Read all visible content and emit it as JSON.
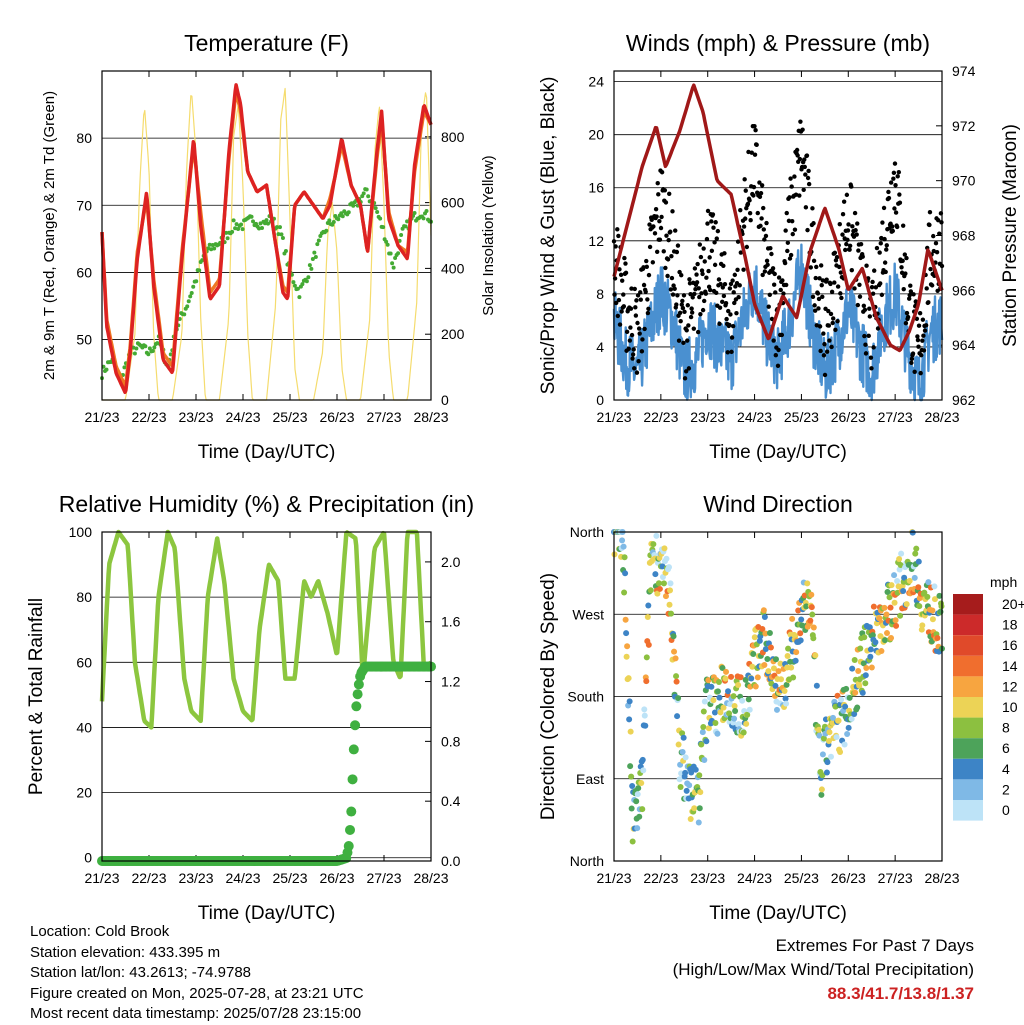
{
  "chart_data": [
    {
      "type": "line",
      "title": "Temperature (F)",
      "xlabel": "Time (Day/UTC)",
      "ylabel": "2m & 9m T (Red, Orange) & 2m Td (Green)",
      "y2label": "Solar Insolation (Yellow)",
      "ylim": [
        41,
        90
      ],
      "y2lim": [
        0,
        1000
      ],
      "yticks": [
        "50",
        "60",
        "70",
        "80"
      ],
      "y2ticks": [
        "0",
        "200",
        "400",
        "600",
        "800"
      ],
      "xticks": [
        "21/23",
        "22/23",
        "23/23",
        "24/23",
        "25/23",
        "26/23",
        "27/23",
        "28/23"
      ],
      "grid": true,
      "series": [
        {
          "name": "2m T",
          "color": "#dd2222",
          "x": [
            0,
            0.1,
            0.3,
            0.5,
            0.6,
            0.75,
            0.95,
            1.1,
            1.3,
            1.5,
            1.7,
            1.95,
            2.1,
            2.3,
            2.5,
            2.7,
            2.85,
            2.95,
            3.1,
            3.3,
            3.5,
            3.7,
            3.85,
            3.95,
            4.1,
            4.3,
            4.5,
            4.7,
            4.85,
            4.95,
            5.1,
            5.3,
            5.5,
            5.65,
            5.85,
            5.95,
            6.1,
            6.3,
            6.5,
            6.65,
            6.85,
            7.0
          ],
          "values": [
            66,
            52,
            45,
            42,
            48,
            62,
            72,
            58,
            47,
            45,
            62,
            80,
            67,
            56,
            58,
            78,
            88,
            85,
            75,
            72,
            73,
            64,
            57,
            56,
            70,
            72,
            70,
            68,
            70,
            74,
            80,
            73,
            70,
            63,
            78,
            84,
            68,
            64,
            62,
            76,
            85,
            82
          ]
        },
        {
          "name": "9m T",
          "color": "#ee7722",
          "x": [
            0,
            0.1,
            0.3,
            0.5,
            0.6,
            0.75,
            0.95,
            1.1,
            1.3,
            1.5,
            1.7,
            1.95,
            2.1,
            2.3,
            2.5,
            2.7,
            2.85,
            2.95,
            3.1,
            3.3,
            3.5,
            3.7,
            3.85,
            3.95,
            4.1,
            4.3,
            4.5,
            4.7,
            4.85,
            4.95,
            5.1,
            5.3,
            5.5,
            5.65,
            5.85,
            5.95,
            6.1,
            6.3,
            6.5,
            6.65,
            6.85,
            7.0
          ],
          "values": [
            66,
            53,
            46,
            43,
            49,
            63,
            71,
            59,
            48,
            46,
            63,
            79,
            69,
            57,
            59,
            77,
            87,
            84,
            75,
            72,
            73,
            64,
            58,
            57,
            70,
            72,
            70,
            68,
            71,
            74,
            79,
            73,
            70,
            63,
            77,
            83,
            69,
            64,
            63,
            75,
            84,
            82
          ]
        },
        {
          "name": "2m Td",
          "color": "#44aa33",
          "x": [
            0,
            0.2,
            0.4,
            0.6,
            0.8,
            1.0,
            1.2,
            1.4,
            1.6,
            1.8,
            2.0,
            2.2,
            2.4,
            2.6,
            2.8,
            3.0,
            3.2,
            3.4,
            3.6,
            3.8,
            4.0,
            4.2,
            4.4,
            4.6,
            4.8,
            5.0,
            5.2,
            5.4,
            5.6,
            5.8,
            6.0,
            6.2,
            6.4,
            6.6,
            6.8,
            7.0
          ],
          "values": [
            45,
            47,
            44,
            48,
            49,
            48,
            50,
            46,
            52,
            55,
            59,
            63,
            64,
            65,
            67,
            67,
            68,
            67,
            68,
            66,
            60,
            57,
            60,
            64,
            67,
            68,
            69,
            70,
            72,
            70,
            66,
            61,
            66,
            68,
            69,
            68
          ]
        },
        {
          "name": "Solar Insolation",
          "color": "#f5dc6e",
          "x": [
            0,
            0.1,
            0.2,
            0.3,
            0.5,
            0.7,
            0.8,
            0.9,
            1.0,
            1.1,
            1.2,
            1.3,
            1.5,
            1.7,
            1.8,
            1.9,
            2.0,
            2.1,
            2.2,
            2.3,
            2.5,
            2.7,
            2.8,
            2.9,
            3.0,
            3.1,
            3.2,
            3.3,
            3.5,
            3.7,
            3.8,
            3.9,
            4.0,
            4.1,
            4.2,
            4.3,
            4.5,
            4.7,
            4.8,
            4.9,
            5.0,
            5.1,
            5.2,
            5.3,
            5.5,
            5.7,
            5.8,
            5.9,
            6.0,
            6.1,
            6.2,
            6.3,
            6.5,
            6.7,
            6.8,
            6.9,
            7.0
          ],
          "values": [
            0,
            0,
            0,
            0,
            0,
            200,
            650,
            900,
            700,
            200,
            0,
            0,
            0,
            200,
            700,
            950,
            750,
            250,
            0,
            0,
            0,
            250,
            800,
            900,
            650,
            200,
            0,
            0,
            0,
            300,
            850,
            950,
            550,
            100,
            0,
            0,
            0,
            150,
            500,
            600,
            450,
            100,
            0,
            0,
            0,
            250,
            750,
            900,
            600,
            150,
            0,
            0,
            0,
            300,
            850,
            950,
            500
          ]
        }
      ]
    },
    {
      "type": "scatter",
      "title": "Winds (mph) & Pressure (mb)",
      "xlabel": "Time (Day/UTC)",
      "ylabel": "Sonic/Prop Wind & Gust (Blue, Black)",
      "y2label": "Station Pressure (Maroon)",
      "ylim": [
        0,
        24.8
      ],
      "y2lim": [
        962,
        974
      ],
      "yticks": [
        "0",
        "4",
        "8",
        "12",
        "16",
        "20",
        "24"
      ],
      "y2ticks": [
        "962",
        "964",
        "966",
        "968",
        "970",
        "972",
        "974"
      ],
      "xticks": [
        "21/23",
        "22/23",
        "23/23",
        "24/23",
        "25/23",
        "26/23",
        "27/23",
        "28/23"
      ],
      "grid": true,
      "series": [
        {
          "name": "Wind",
          "color": "#4a90d0",
          "x": [
            0,
            0.25,
            0.5,
            0.75,
            1.0,
            1.25,
            1.5,
            1.75,
            2.0,
            2.25,
            2.5,
            2.75,
            3.0,
            3.25,
            3.5,
            3.75,
            4.0,
            4.25,
            4.5,
            4.75,
            5.0,
            5.25,
            5.5,
            5.75,
            6.0,
            6.25,
            6.5,
            6.75,
            7.0
          ],
          "values": [
            6,
            3,
            2,
            5,
            8,
            6,
            2,
            3,
            6,
            4,
            3,
            6,
            9,
            5,
            3,
            6,
            10,
            5,
            2,
            4,
            7,
            4,
            2,
            6,
            8,
            4,
            1,
            5,
            6
          ]
        },
        {
          "name": "Gust",
          "color": "#000000",
          "x": [
            0,
            0.25,
            0.5,
            0.75,
            1.0,
            1.25,
            1.5,
            1.75,
            2.0,
            2.25,
            2.5,
            2.75,
            3.0,
            3.25,
            3.5,
            3.75,
            4.0,
            4.25,
            4.5,
            4.75,
            5.0,
            5.25,
            5.5,
            5.75,
            6.0,
            6.25,
            6.5,
            6.75,
            7.0
          ],
          "values": [
            11,
            7,
            5,
            10,
            15,
            11,
            5,
            7,
            12,
            9,
            6,
            13,
            18,
            10,
            6,
            13,
            19,
            11,
            5,
            9,
            14,
            9,
            5,
            12,
            17,
            8,
            3,
            11,
            12
          ]
        },
        {
          "name": "Station Pressure",
          "color": "#a01818",
          "x": [
            0,
            0.3,
            0.6,
            0.9,
            1.1,
            1.4,
            1.7,
            1.9,
            2.2,
            2.5,
            2.8,
            3.0,
            3.3,
            3.6,
            3.9,
            4.2,
            4.5,
            4.8,
            5.0,
            5.3,
            5.6,
            5.9,
            6.1,
            6.3,
            6.5,
            6.7,
            6.9,
            7.0
          ],
          "values": [
            966.5,
            968.5,
            970.5,
            972,
            970.5,
            971.8,
            973.5,
            972.5,
            970,
            969.5,
            967.2,
            965.5,
            964.2,
            965.8,
            965,
            967.5,
            969,
            967.5,
            966,
            966.8,
            965,
            964,
            963.8,
            964.5,
            965.5,
            967.5,
            966.5,
            966
          ]
        }
      ]
    },
    {
      "type": "line",
      "title": "Relative Humidity (%) & Precipitation (in)",
      "xlabel": "Time (Day/UTC)",
      "ylabel": "Percent & Total Rainfall",
      "ylim": [
        -1,
        100
      ],
      "y2lim": [
        0,
        2.2
      ],
      "yticks": [
        "0",
        "20",
        "40",
        "60",
        "80",
        "100"
      ],
      "y2ticks": [
        "0.0",
        "0.4",
        "0.8",
        "1.2",
        "1.6",
        "2.0"
      ],
      "xticks": [
        "21/23",
        "22/23",
        "23/23",
        "24/23",
        "25/23",
        "26/23",
        "27/23",
        "28/23"
      ],
      "grid": true,
      "series": [
        {
          "name": "Relative Humidity",
          "color": "#8cc63f",
          "x": [
            0,
            0.15,
            0.35,
            0.55,
            0.7,
            0.9,
            1.05,
            1.2,
            1.4,
            1.55,
            1.75,
            1.9,
            2.1,
            2.25,
            2.45,
            2.6,
            2.8,
            3.0,
            3.2,
            3.35,
            3.55,
            3.75,
            3.9,
            4.1,
            4.3,
            4.45,
            4.6,
            4.8,
            5.0,
            5.2,
            5.4,
            5.55,
            5.8,
            6.0,
            6.2,
            6.35,
            6.5,
            6.7,
            6.85,
            7.0
          ],
          "values": [
            48,
            90,
            100,
            96,
            60,
            42,
            40,
            80,
            100,
            95,
            55,
            45,
            42,
            80,
            98,
            85,
            55,
            45,
            42,
            70,
            90,
            85,
            55,
            55,
            85,
            80,
            85,
            75,
            62,
            100,
            98,
            55,
            95,
            100,
            60,
            55,
            100,
            100,
            58,
            60
          ]
        },
        {
          "name": "Total Precipitation",
          "color": "#3fb040",
          "x": [
            0,
            5.0,
            5.2,
            5.25,
            5.3,
            5.35,
            5.4,
            5.45,
            5.5,
            5.6,
            7.0
          ],
          "values": [
            0,
            0,
            0.02,
            0.1,
            0.3,
            0.7,
            1.0,
            1.15,
            1.25,
            1.3,
            1.3
          ]
        }
      ]
    },
    {
      "type": "scatter",
      "title": "Wind Direction",
      "xlabel": "Time (Day/UTC)",
      "ylabel": "Direction (Colored By Speed)",
      "yticks": [
        "North",
        "East",
        "South",
        "West",
        "North"
      ],
      "xticks": [
        "21/23",
        "22/23",
        "23/23",
        "24/23",
        "25/23",
        "26/23",
        "27/23",
        "28/23"
      ],
      "legend": {
        "title": "mph",
        "labels": [
          "20+",
          "18",
          "16",
          "14",
          "12",
          "10",
          "8",
          "6",
          "4",
          "2",
          "0"
        ],
        "colors": [
          "#a61c1c",
          "#cc2a2a",
          "#e04a2a",
          "#f06e2e",
          "#f7a540",
          "#ecd356",
          "#8cc040",
          "#4da35a",
          "#3d84c6",
          "#7fb9e6",
          "#bde3f7"
        ]
      },
      "series": [
        {
          "name": "Direction",
          "x": [
            0,
            0.2,
            0.4,
            0.6,
            0.8,
            1.0,
            1.2,
            1.4,
            1.6,
            1.8,
            2.0,
            2.2,
            2.4,
            2.6,
            2.8,
            3.0,
            3.2,
            3.4,
            3.6,
            3.8,
            4.0,
            4.2,
            4.4,
            4.6,
            4.8,
            5.0,
            5.2,
            5.4,
            5.6,
            5.8,
            6.0,
            6.2,
            6.4,
            6.6,
            6.8,
            7.0
          ],
          "values": [
            360,
            350,
            40,
            80,
            340,
            320,
            290,
            120,
            80,
            70,
            180,
            170,
            190,
            170,
            170,
            220,
            240,
            210,
            185,
            230,
            265,
            285,
            90,
            140,
            150,
            170,
            200,
            230,
            255,
            265,
            290,
            310,
            330,
            280,
            270,
            250
          ]
        }
      ]
    }
  ],
  "info": {
    "location": "Location: Cold Brook",
    "elevation": "Station elevation: 433.395 m",
    "latlon": "Station lat/lon: 43.2613; -74.9788",
    "created": "Figure created on Mon, 2025-07-28, at 23:21 UTC",
    "recent": "Most recent data timestamp: 2025/07/28 23:15:00"
  },
  "extremes": {
    "title": "Extremes For Past 7 Days",
    "subtitle": "(High/Low/Max Wind/Total Precipitation)",
    "values": "88.3/41.7/13.8/1.37"
  }
}
